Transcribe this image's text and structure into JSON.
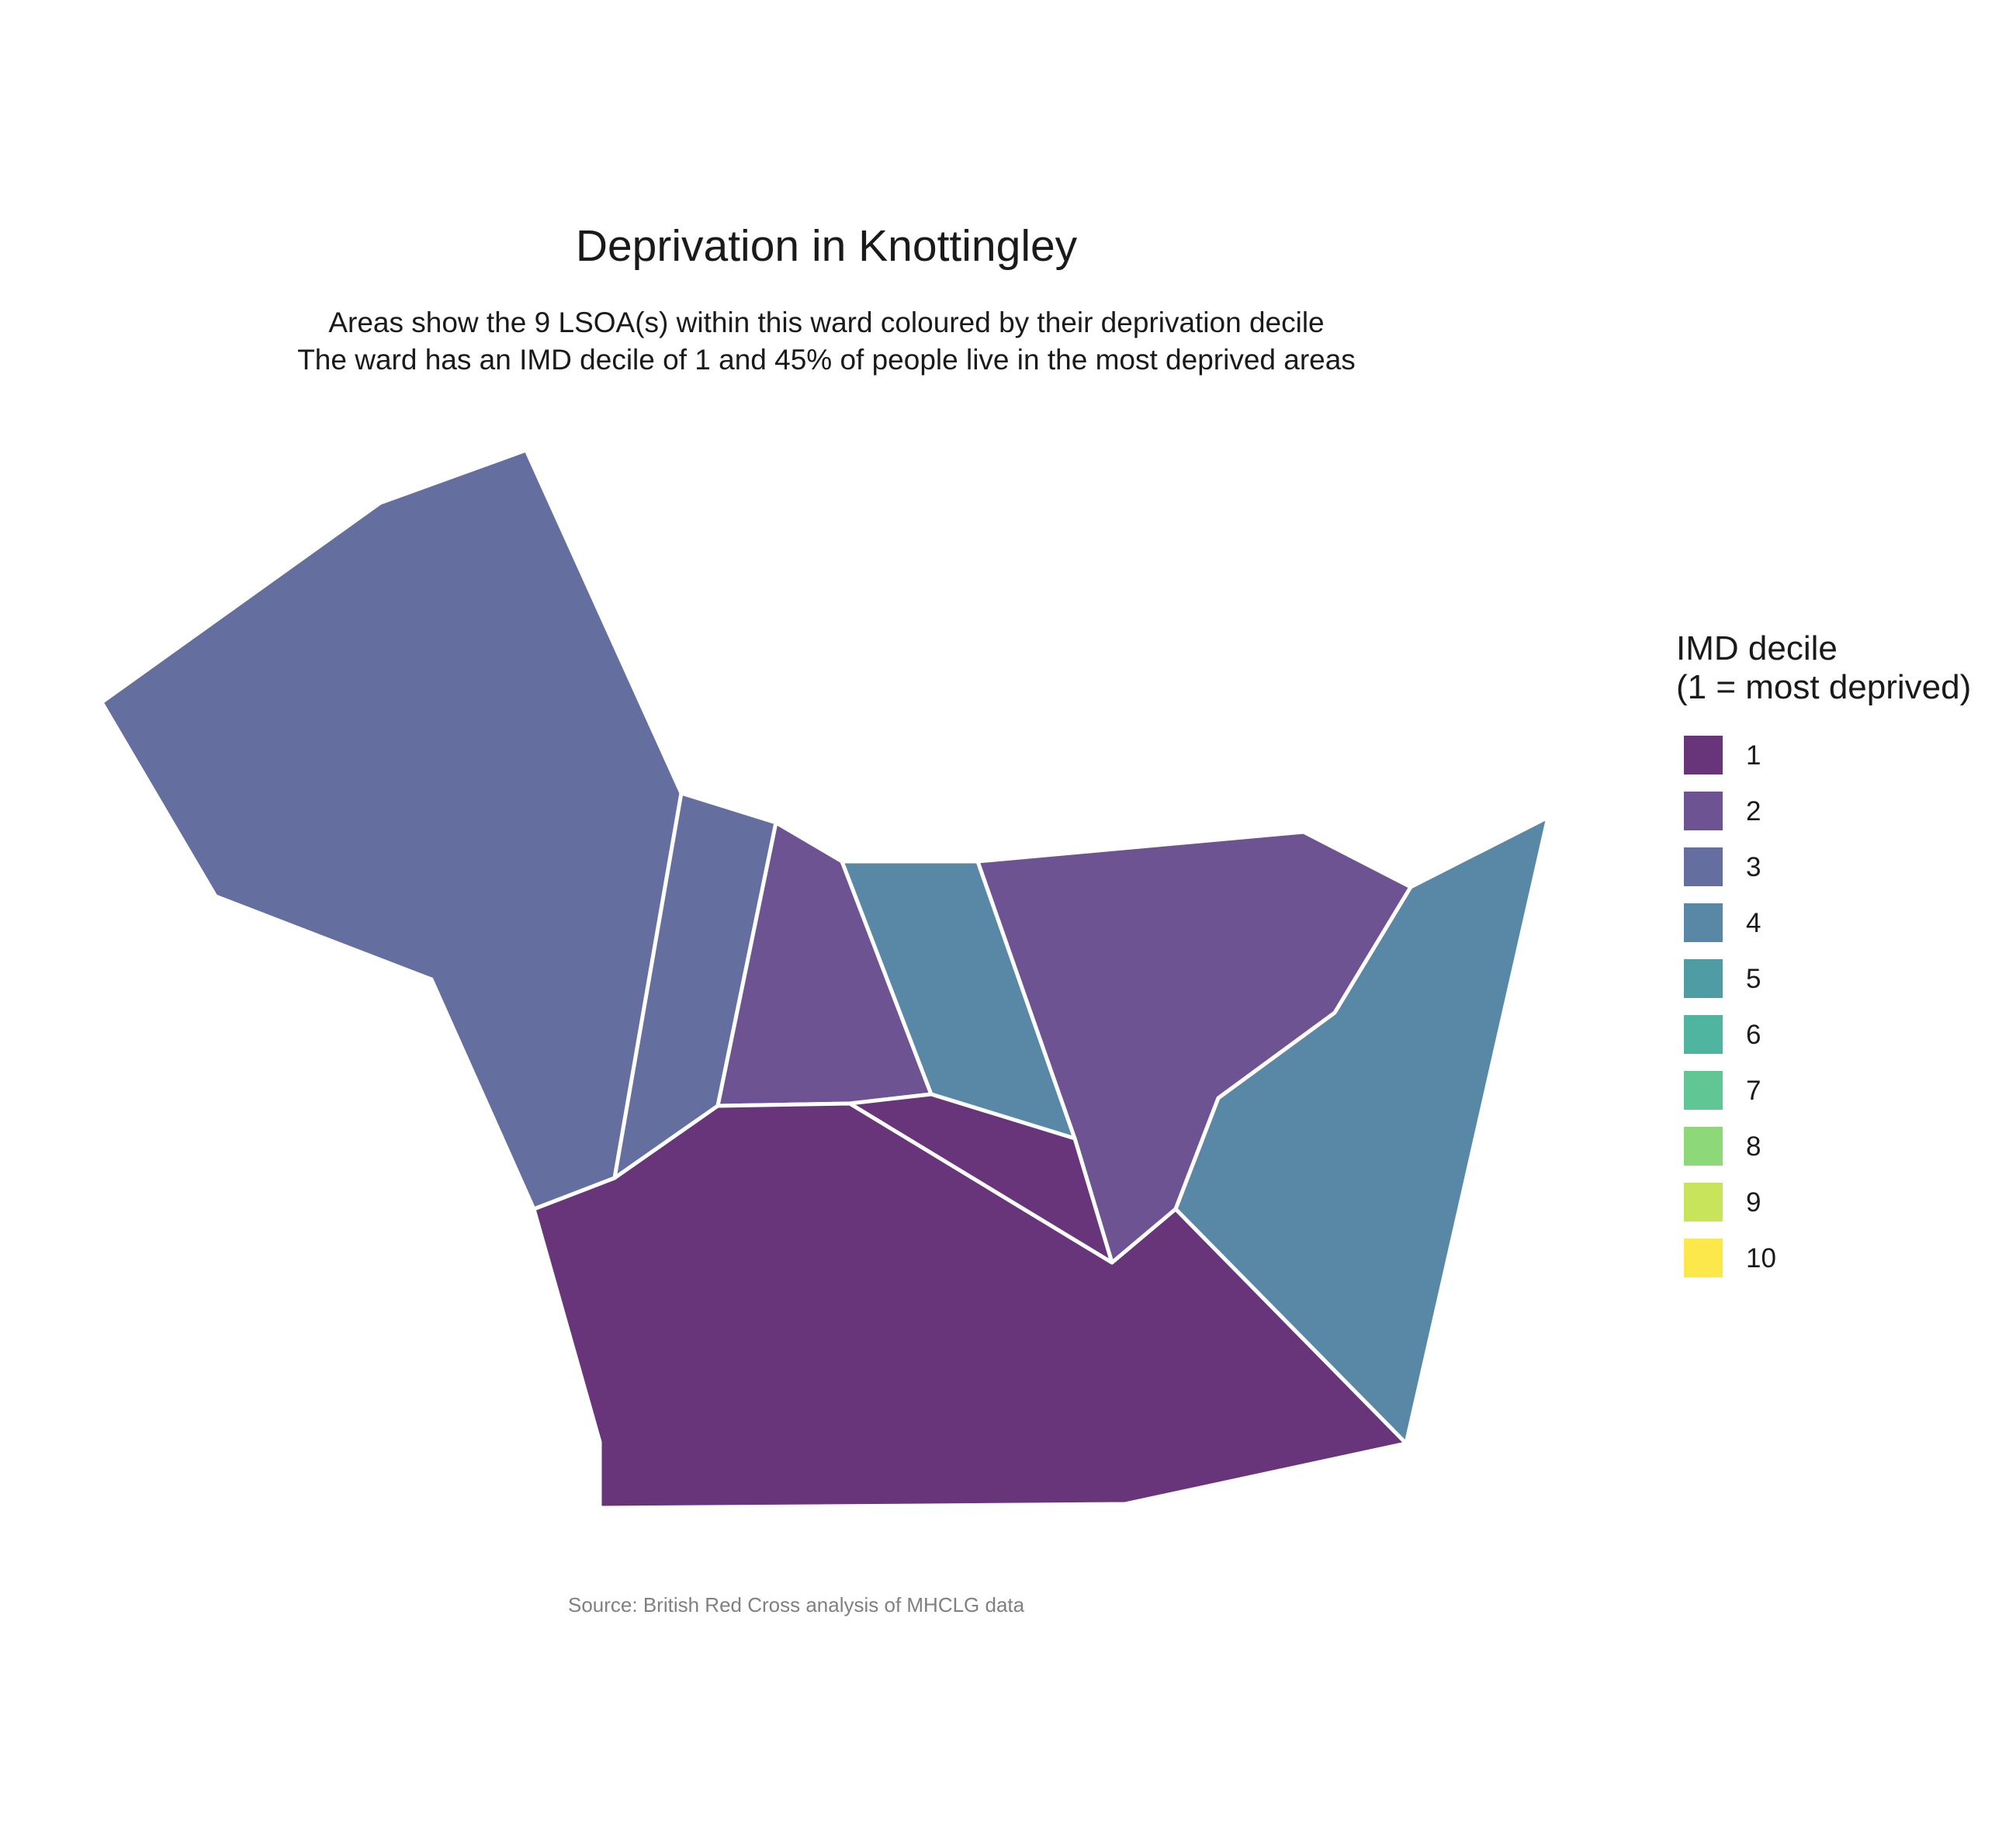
{
  "title": "Deprivation in Knottingley",
  "subtitle_lines": [
    "Areas show the 9 LSOA(s) within this ward coloured by their deprivation decile",
    "The ward has an IMD decile of 1 and 45% of people live in the most deprived areas"
  ],
  "caption": "Source: British Red Cross analysis of MHCLG data",
  "legend": {
    "title_lines": [
      "IMD decile",
      "(1 = most deprived)"
    ],
    "items": [
      {
        "label": "1",
        "color": "#68347A"
      },
      {
        "label": "2",
        "color": "#6D5392"
      },
      {
        "label": "3",
        "color": "#646F9F"
      },
      {
        "label": "4",
        "color": "#5988A6"
      },
      {
        "label": "5",
        "color": "#509CA5"
      },
      {
        "label": "6",
        "color": "#4FB5A0"
      },
      {
        "label": "7",
        "color": "#5FC694"
      },
      {
        "label": "8",
        "color": "#8DD879"
      },
      {
        "label": "9",
        "color": "#C7E45A"
      },
      {
        "label": "10",
        "color": "#FDE84C"
      }
    ]
  },
  "chart_data": {
    "type": "choropleth",
    "ward": "Knottingley",
    "lsoa_count": 9,
    "ward_imd_decile": 1,
    "percent_most_deprived": 45,
    "areas": [
      {
        "id": "lsoa-a",
        "decile": 3
      },
      {
        "id": "lsoa-b",
        "decile": 3
      },
      {
        "id": "lsoa-c",
        "decile": 2
      },
      {
        "id": "lsoa-d",
        "decile": 4
      },
      {
        "id": "lsoa-e",
        "decile": 2
      },
      {
        "id": "lsoa-f",
        "decile": 4
      },
      {
        "id": "lsoa-g",
        "decile": 1
      },
      {
        "id": "lsoa-h",
        "decile": 1
      },
      {
        "id": "lsoa-i",
        "decile": 1
      }
    ]
  }
}
